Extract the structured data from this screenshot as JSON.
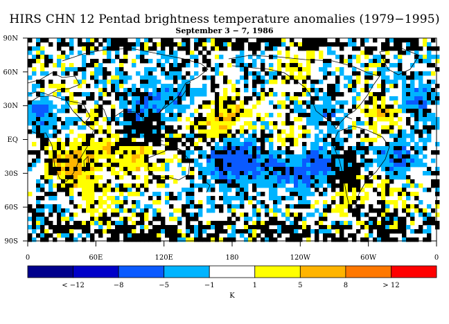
{
  "title": "HIRS CHN 12 Pentad brightness temperature anomalies (1979−1995)",
  "subtitle": "September 3 − 7, 1986",
  "map": {
    "latitude_labels": [
      "90N",
      "60N",
      "30N",
      "EQ",
      "30S",
      "60S",
      "90S"
    ],
    "longitude_labels": [
      "0",
      "60E",
      "120E",
      "180",
      "120W",
      "60W",
      "0"
    ],
    "missing_data_color": "#000000",
    "coastline_color": "#000000"
  },
  "colorbar": {
    "unit": "K",
    "labels": [
      "< −12",
      "−8",
      "−5",
      "−1",
      "1",
      "5",
      "8",
      "> 12"
    ],
    "colors": [
      "#00008c",
      "#0000c8",
      "#0a5aff",
      "#00b4ff",
      "#ffffff",
      "#ffff00",
      "#ffb400",
      "#ff7800",
      "#ff0000"
    ]
  }
}
